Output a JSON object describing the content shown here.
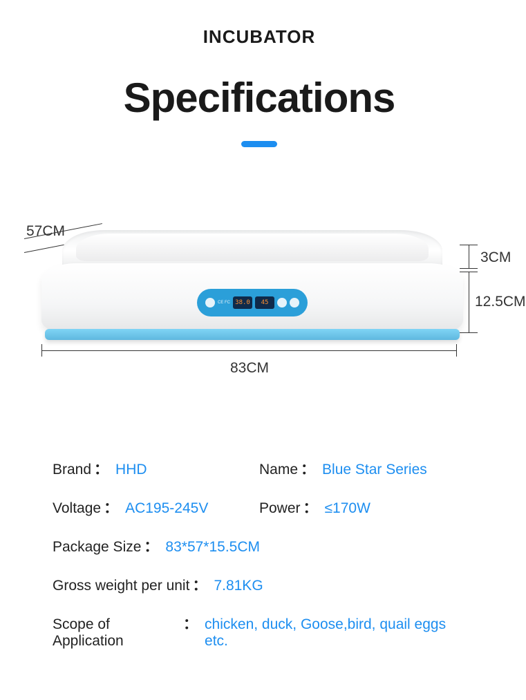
{
  "colors": {
    "accent": "#1d8ef0",
    "value": "#1d8ef0",
    "label": "#222222",
    "title": "#1a1a1a",
    "dim_line": "#333333",
    "panel_bg": "#2b9fd9",
    "tray_bg": "#7fd4f5",
    "underline": "#1d8ef0"
  },
  "header": {
    "small_title": "INCUBATOR",
    "main_title": "Specifications"
  },
  "dimensions": {
    "depth": "57CM",
    "width": "83CM",
    "lid_height": "3CM",
    "base_height": "12.5CM"
  },
  "panel": {
    "temp_display": "38.0",
    "humidity_display": "45",
    "cert_text": "CE FC"
  },
  "specs": [
    [
      {
        "label": "Brand",
        "value": "HHD"
      },
      {
        "label": "Name",
        "value": "Blue Star Series"
      }
    ],
    [
      {
        "label": "Voltage",
        "value": "AC195-245V"
      },
      {
        "label": "Power",
        "value": "≤170W"
      }
    ],
    [
      {
        "label": "Package Size",
        "value": "83*57*15.5CM",
        "wide": true
      }
    ],
    [
      {
        "label": "Gross weight per unit",
        "value": "7.81KG",
        "wide": true
      }
    ],
    [
      {
        "label": "Scope of Application ",
        "value": "chicken, duck, Goose,bird, quail eggs etc.",
        "wide": true
      }
    ]
  ]
}
